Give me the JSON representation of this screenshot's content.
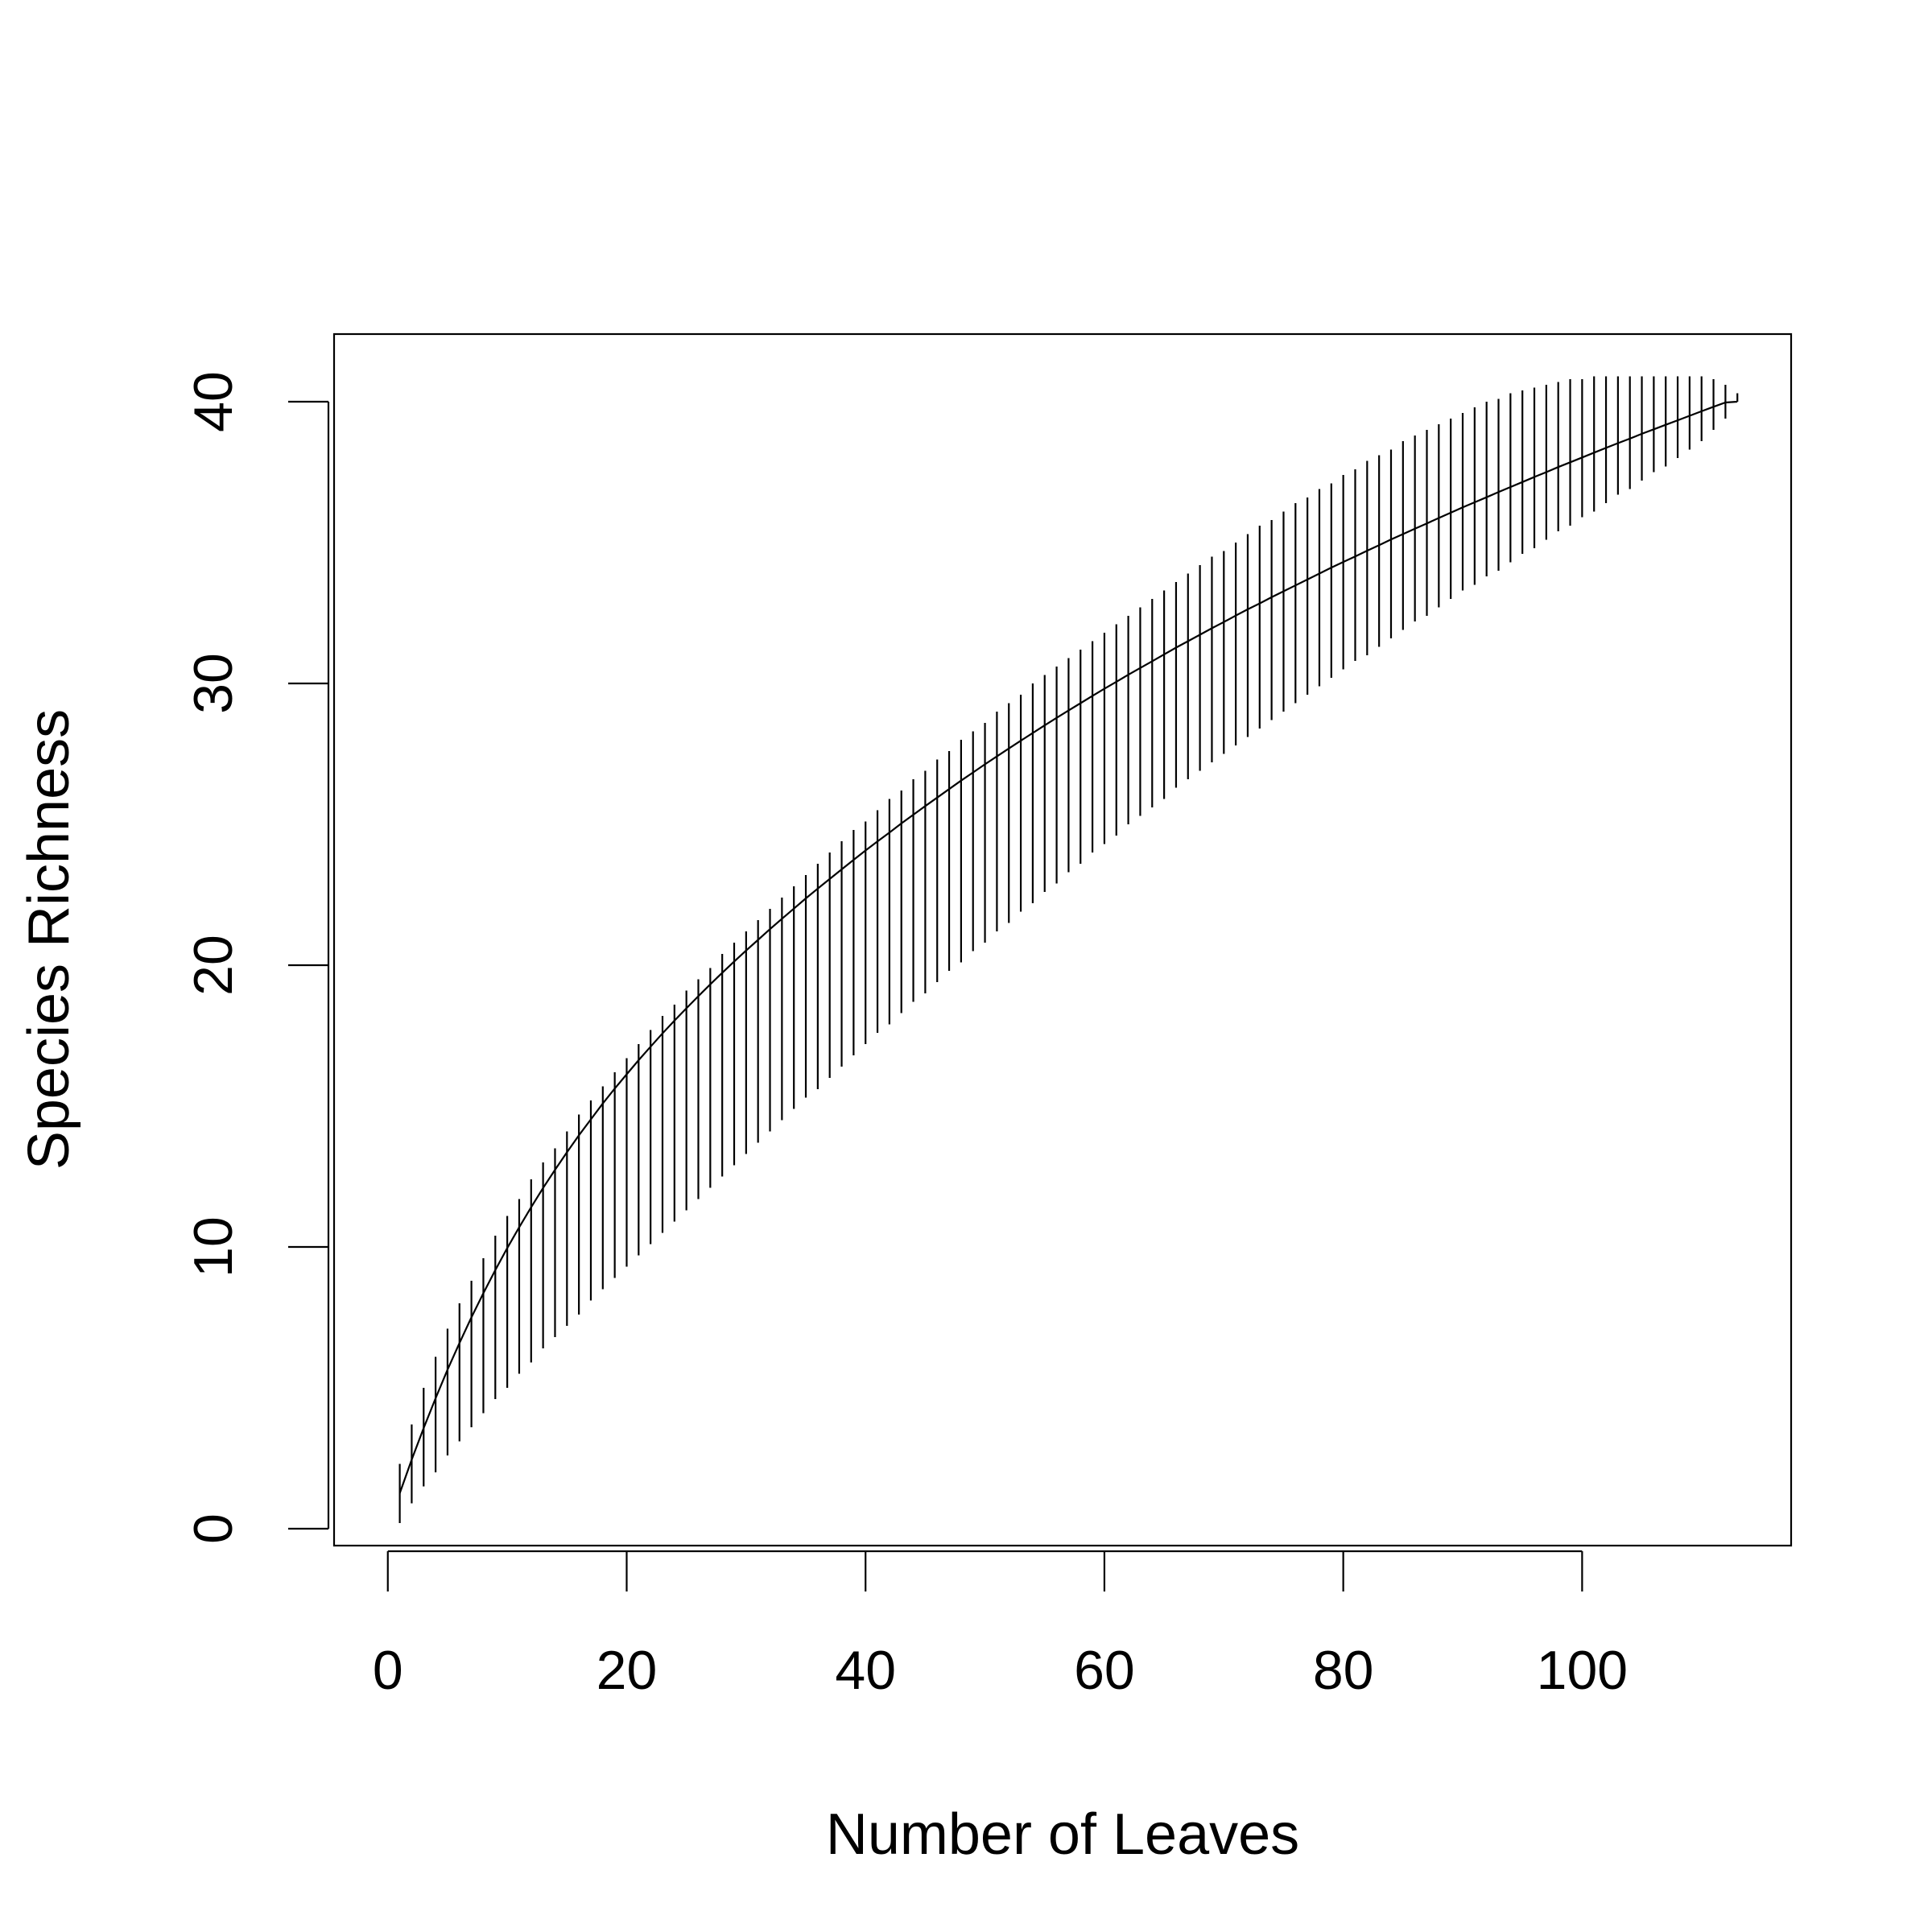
{
  "chart_data": {
    "type": "line",
    "title": "",
    "xlabel": "Number of Leaves",
    "ylabel": "Species Richness",
    "xlim": [
      -4.5,
      117.5
    ],
    "ylim": [
      -0.6,
      42.4
    ],
    "x_ticks": [
      0,
      20,
      40,
      60,
      80,
      100
    ],
    "x_tick_labels": [
      "0",
      "20",
      "40",
      "60",
      "80",
      "100"
    ],
    "y_ticks": [
      0,
      10,
      20,
      30,
      40
    ],
    "y_tick_labels": [
      "0",
      "10",
      "20",
      "30",
      "40"
    ],
    "grid": false,
    "legend": "none",
    "colors": {
      "line": "#000000",
      "background": "#ffffff"
    },
    "series": [
      {
        "type": "line-with-error-bars",
        "x": [
          1,
          2,
          3,
          4,
          5,
          6,
          7,
          8,
          9,
          10,
          11,
          12,
          13,
          14,
          15,
          16,
          17,
          18,
          19,
          20,
          21,
          22,
          23,
          24,
          25,
          26,
          27,
          28,
          29,
          30,
          31,
          32,
          33,
          34,
          35,
          36,
          37,
          38,
          39,
          40,
          41,
          42,
          43,
          44,
          45,
          46,
          47,
          48,
          49,
          50,
          51,
          52,
          53,
          54,
          55,
          56,
          57,
          58,
          59,
          60,
          61,
          62,
          63,
          64,
          65,
          66,
          67,
          68,
          69,
          70,
          71,
          72,
          73,
          74,
          75,
          76,
          77,
          78,
          79,
          80,
          81,
          82,
          83,
          84,
          85,
          86,
          87,
          88,
          89,
          90,
          91,
          92,
          93,
          94,
          95,
          96,
          97,
          98,
          99,
          100,
          101,
          102,
          103,
          104,
          105,
          106,
          107,
          108,
          109,
          110,
          111,
          112,
          113
        ],
        "y": [
          1.26,
          2.45,
          3.57,
          4.63,
          5.64,
          6.59,
          7.5,
          8.36,
          9.18,
          9.96,
          10.7,
          11.41,
          12.09,
          12.74,
          13.36,
          13.96,
          14.53,
          15.09,
          15.62,
          16.13,
          16.63,
          17.11,
          17.58,
          18.03,
          18.47,
          18.9,
          19.32,
          19.73,
          20.13,
          20.52,
          20.9,
          21.28,
          21.65,
          22.01,
          22.37,
          22.72,
          23.06,
          23.4,
          23.74,
          24.07,
          24.39,
          24.71,
          25.03,
          25.34,
          25.65,
          25.95,
          26.25,
          26.55,
          26.84,
          27.13,
          27.41,
          27.69,
          27.97,
          28.24,
          28.51,
          28.78,
          29.04,
          29.3,
          29.56,
          29.81,
          30.06,
          30.31,
          30.55,
          30.79,
          31.03,
          31.27,
          31.5,
          31.73,
          31.96,
          32.18,
          32.41,
          32.63,
          32.84,
          33.06,
          33.27,
          33.48,
          33.69,
          33.9,
          34.11,
          34.31,
          34.51,
          34.71,
          34.91,
          35.11,
          35.3,
          35.49,
          35.68,
          35.87,
          36.06,
          36.25,
          36.43,
          36.61,
          36.79,
          36.97,
          37.15,
          37.33,
          37.5,
          37.68,
          37.85,
          38.02,
          38.19,
          38.36,
          38.53,
          38.69,
          38.86,
          39.02,
          39.18,
          39.34,
          39.5,
          39.66,
          39.82,
          39.97,
          40.0
        ],
        "error_low": [
          0.2,
          0.9,
          1.5,
          2.0,
          2.6,
          3.1,
          3.6,
          4.1,
          4.6,
          5.0,
          5.5,
          5.9,
          6.4,
          6.8,
          7.2,
          7.6,
          8.1,
          8.5,
          8.9,
          9.3,
          9.7,
          10.1,
          10.5,
          10.9,
          11.3,
          11.7,
          12.1,
          12.5,
          12.9,
          13.3,
          13.7,
          14.1,
          14.5,
          14.9,
          15.3,
          15.6,
          16.0,
          16.4,
          16.8,
          17.2,
          17.6,
          17.9,
          18.3,
          18.7,
          19.0,
          19.4,
          19.8,
          20.1,
          20.5,
          20.8,
          21.2,
          21.5,
          21.9,
          22.2,
          22.6,
          22.9,
          23.3,
          23.6,
          24.0,
          24.3,
          24.6,
          25.0,
          25.3,
          25.6,
          25.9,
          26.3,
          26.6,
          26.9,
          27.2,
          27.5,
          27.8,
          28.1,
          28.4,
          28.7,
          29.0,
          29.3,
          29.6,
          29.9,
          30.2,
          30.5,
          30.8,
          31.0,
          31.3,
          31.6,
          31.9,
          32.2,
          32.4,
          32.7,
          33.0,
          33.3,
          33.5,
          33.8,
          34.0,
          34.3,
          34.6,
          34.8,
          35.1,
          35.4,
          35.6,
          35.9,
          36.1,
          36.4,
          36.7,
          36.9,
          37.2,
          37.5,
          37.7,
          38.0,
          38.3,
          38.6,
          39.0,
          39.4,
          40.0
        ],
        "error_high": [
          2.3,
          3.7,
          5.0,
          6.1,
          7.1,
          8.0,
          8.8,
          9.6,
          10.4,
          11.1,
          11.7,
          12.4,
          13.0,
          13.5,
          14.1,
          14.7,
          15.2,
          15.7,
          16.2,
          16.7,
          17.2,
          17.7,
          18.2,
          18.6,
          19.1,
          19.5,
          19.9,
          20.4,
          20.8,
          21.2,
          21.6,
          22.0,
          22.4,
          22.8,
          23.2,
          23.6,
          24.0,
          24.4,
          24.8,
          25.1,
          25.5,
          25.9,
          26.2,
          26.6,
          26.9,
          27.3,
          27.6,
          28.0,
          28.3,
          28.6,
          29.0,
          29.3,
          29.6,
          30.0,
          30.3,
          30.6,
          30.9,
          31.2,
          31.5,
          31.8,
          32.1,
          32.4,
          32.7,
          33.0,
          33.3,
          33.6,
          33.9,
          34.2,
          34.5,
          34.7,
          35.0,
          35.3,
          35.6,
          35.8,
          36.1,
          36.4,
          36.6,
          36.9,
          37.1,
          37.4,
          37.6,
          37.9,
          38.1,
          38.3,
          38.6,
          38.8,
          39.0,
          39.2,
          39.4,
          39.6,
          39.8,
          40.0,
          40.1,
          40.3,
          40.4,
          40.5,
          40.6,
          40.7,
          40.8,
          40.8,
          40.9,
          40.9,
          40.9,
          40.9,
          40.9,
          40.9,
          40.9,
          40.9,
          40.9,
          40.9,
          40.8,
          40.6,
          40.3
        ]
      }
    ]
  }
}
